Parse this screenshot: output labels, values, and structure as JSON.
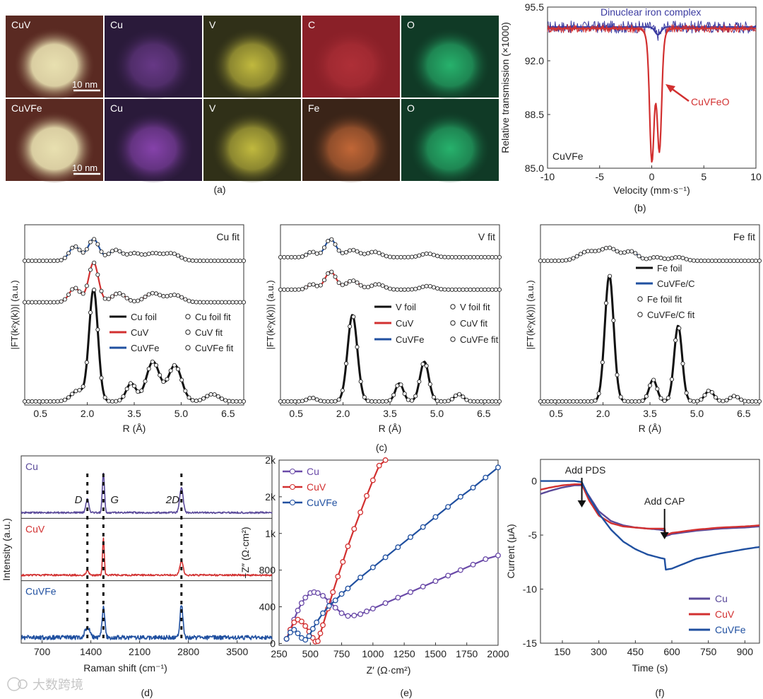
{
  "captions": {
    "a": "(a)",
    "b": "(b)",
    "c": "(c)",
    "d": "(d)",
    "e": "(e)",
    "f": "(f)"
  },
  "watermark": "大数跨境",
  "panel_a": {
    "rows": [
      {
        "tiles": [
          {
            "label": "CuV",
            "color": "#e8e0b0",
            "bg": "#5a2a22",
            "kind": "haadf"
          },
          {
            "label": "Cu",
            "color": "#6a3a8a",
            "bg": "#2a1a3a",
            "kind": "map"
          },
          {
            "label": "V",
            "color": "#c8c040",
            "bg": "#303018",
            "kind": "map"
          },
          {
            "label": "C",
            "color": "#b03038",
            "bg": "#8a2028",
            "kind": "map"
          },
          {
            "label": "O",
            "color": "#28b870",
            "bg": "#103a26",
            "kind": "map"
          }
        ],
        "scale_bar": "10 nm"
      },
      {
        "tiles": [
          {
            "label": "CuVFe",
            "color": "#e8e0b0",
            "bg": "#5a2a22",
            "kind": "haadf"
          },
          {
            "label": "Cu",
            "color": "#8a44b0",
            "bg": "#2a1a3a",
            "kind": "map"
          },
          {
            "label": "V",
            "color": "#c8c040",
            "bg": "#303018",
            "kind": "map"
          },
          {
            "label": "Fe",
            "color": "#c86a38",
            "bg": "#3a2418",
            "kind": "map"
          },
          {
            "label": "O",
            "color": "#28b870",
            "bg": "#103a26",
            "kind": "map"
          }
        ],
        "scale_bar": "10 nm"
      }
    ]
  },
  "chart_data": [
    {
      "id": "b",
      "type": "line",
      "xlabel": "Velocity (mm·s⁻¹)",
      "ylabel": "Relative transmission (×1000)",
      "xlim": [
        -10,
        10
      ],
      "ylim": [
        85.0,
        95.5
      ],
      "xticks": [
        -10,
        -5,
        0,
        5,
        10
      ],
      "yticks": [
        85.0,
        88.5,
        92.0,
        95.5
      ],
      "yticklabels": [
        "85.0",
        "88.5",
        "92.0",
        "95.5"
      ],
      "inner_label": "CuVFe",
      "annotations": [
        {
          "text": "Dinuclear iron complex",
          "color": "#3a3aa0"
        },
        {
          "text": "CuVFeO",
          "color": "#d23030"
        }
      ],
      "series": [
        {
          "name": "Dinuclear iron complex",
          "color": "#3a3aa0",
          "baseline": 94.2,
          "dips": [
            [
              0.6,
              0.5,
              0.4
            ]
          ]
        },
        {
          "name": "CuVFeO",
          "color": "#d23030",
          "baseline": 94.1,
          "dips": [
            [
              0.0,
              6.5,
              0.28
            ],
            [
              0.75,
              6.0,
              0.28
            ],
            [
              0.35,
              2.8,
              0.7
            ]
          ]
        }
      ]
    },
    {
      "id": "c1",
      "type": "line",
      "title": "Cu fit",
      "xlabel": "R (Å)",
      "ylabel": "|FT(k²χ(k))| (a.u.)",
      "xlim": [
        0,
        7
      ],
      "xticks": [
        0.5,
        2.0,
        3.5,
        5.0,
        6.5
      ],
      "xticklabels": [
        "0.5",
        "2.0",
        "3.5",
        "5.0",
        "6.5"
      ],
      "legend": [
        "Cu foil",
        "CuV",
        "CuVFe"
      ],
      "legend_fit": [
        "Cu foil fit",
        "CuV fit",
        "CuVFe fit"
      ],
      "series": [
        {
          "name": "CuVFe",
          "color": "#2050a0",
          "offset": 0.8,
          "peaks": [
            [
              1.6,
              0.08,
              0.25
            ],
            [
              2.2,
              0.12,
              0.25
            ],
            [
              2.9,
              0.06,
              0.3
            ],
            [
              3.5,
              0.04,
              0.3
            ],
            [
              4.1,
              0.04,
              0.35
            ],
            [
              4.7,
              0.04,
              0.35
            ]
          ]
        },
        {
          "name": "CuV",
          "color": "#d23030",
          "offset": 0.57,
          "peaks": [
            [
              1.6,
              0.08,
              0.25
            ],
            [
              2.2,
              0.22,
              0.22
            ],
            [
              3.0,
              0.05,
              0.3
            ],
            [
              4.1,
              0.05,
              0.35
            ],
            [
              4.8,
              0.04,
              0.35
            ]
          ]
        },
        {
          "name": "Cu foil",
          "color": "#111111",
          "offset": 0.02,
          "peaks": [
            [
              1.7,
              0.06,
              0.3
            ],
            [
              2.2,
              0.62,
              0.2
            ],
            [
              3.4,
              0.1,
              0.22
            ],
            [
              4.1,
              0.22,
              0.3
            ],
            [
              4.8,
              0.2,
              0.3
            ],
            [
              6.0,
              0.04,
              0.3
            ]
          ]
        }
      ]
    },
    {
      "id": "c2",
      "type": "line",
      "title": "V fit",
      "xlabel": "R (Å)",
      "ylabel": "|FT(k²χ(k))| (a.u.)",
      "xlim": [
        0,
        7
      ],
      "xticks": [
        0.5,
        2.0,
        3.5,
        5.0,
        6.5
      ],
      "xticklabels": [
        "0.5",
        "2.0",
        "3.5",
        "5.0",
        "6.5"
      ],
      "legend": [
        "V foil",
        "CuV",
        "CuVFe"
      ],
      "legend_fit": [
        "V foil fit",
        "CuV fit",
        "CuVFe fit"
      ],
      "series": [
        {
          "name": "CuVFe",
          "color": "#2050a0",
          "offset": 0.82,
          "peaks": [
            [
              1.0,
              0.03,
              0.2
            ],
            [
              1.6,
              0.1,
              0.25
            ],
            [
              2.3,
              0.04,
              0.3
            ],
            [
              3.0,
              0.03,
              0.3
            ],
            [
              4.7,
              0.02,
              0.3
            ]
          ]
        },
        {
          "name": "CuV",
          "color": "#d23030",
          "offset": 0.64,
          "peaks": [
            [
              1.0,
              0.03,
              0.2
            ],
            [
              1.6,
              0.1,
              0.25
            ],
            [
              2.3,
              0.05,
              0.3
            ],
            [
              3.1,
              0.03,
              0.3
            ],
            [
              4.7,
              0.02,
              0.3
            ]
          ]
        },
        {
          "name": "V foil",
          "color": "#111111",
          "offset": 0.02,
          "peaks": [
            [
              1.0,
              0.02,
              0.2
            ],
            [
              2.3,
              0.48,
              0.22
            ],
            [
              3.8,
              0.1,
              0.18
            ],
            [
              4.6,
              0.22,
              0.2
            ],
            [
              5.7,
              0.04,
              0.2
            ]
          ]
        }
      ]
    },
    {
      "id": "c3",
      "type": "line",
      "title": "Fe fit",
      "xlabel": "R (Å)",
      "ylabel": "|FT(k²χ(k))| (a.u.)",
      "xlim": [
        0,
        7
      ],
      "xticks": [
        0.5,
        2.0,
        3.5,
        5.0,
        6.5
      ],
      "xticklabels": [
        "0.5",
        "2.0",
        "3.5",
        "5.0",
        "6.5"
      ],
      "legend": [
        "Fe foil",
        "CuVFe/C"
      ],
      "legend_fit": [
        "Fe foil fit",
        "CuVFe/C fit"
      ],
      "series": [
        {
          "name": "CuVFe/C",
          "color": "#2050a0",
          "offset": 0.8,
          "peaks": [
            [
              1.5,
              0.05,
              0.4
            ],
            [
              2.2,
              0.07,
              0.4
            ],
            [
              2.9,
              0.05,
              0.3
            ],
            [
              3.7,
              0.02,
              0.3
            ],
            [
              4.4,
              0.02,
              0.3
            ]
          ]
        },
        {
          "name": "Fe foil",
          "color": "#111111",
          "offset": 0.02,
          "peaks": [
            [
              2.2,
              0.7,
              0.2
            ],
            [
              3.6,
              0.12,
              0.18
            ],
            [
              4.4,
              0.42,
              0.18
            ],
            [
              5.4,
              0.06,
              0.2
            ],
            [
              6.2,
              0.03,
              0.2
            ]
          ]
        }
      ]
    },
    {
      "id": "d",
      "type": "line",
      "xlabel": "Raman shift (cm⁻¹)",
      "ylabel": "Intensity (a.u.)",
      "xlim": [
        400,
        4000
      ],
      "xticks": [
        700,
        1400,
        2100,
        2800,
        3500
      ],
      "peak_labels": [
        "D",
        "G",
        "2D"
      ],
      "peak_positions": [
        1350,
        1580,
        2700
      ],
      "series": [
        {
          "name": "Cu",
          "color": "#5a4a9a",
          "peaks": [
            [
              1350,
              0.3,
              30
            ],
            [
              1580,
              0.85,
              22
            ],
            [
              2700,
              0.55,
              35
            ]
          ]
        },
        {
          "name": "CuV",
          "color": "#d23030",
          "peaks": [
            [
              1350,
              0.1,
              30
            ],
            [
              1580,
              0.8,
              18
            ],
            [
              2700,
              0.3,
              35
            ]
          ]
        },
        {
          "name": "CuVFe",
          "color": "#2050a0",
          "peaks": [
            [
              1350,
              0.22,
              50
            ],
            [
              1580,
              0.65,
              28
            ],
            [
              2700,
              0.72,
              30
            ]
          ]
        }
      ]
    },
    {
      "id": "e",
      "type": "scatter",
      "xlabel": "Z′ (Ω·cm²)",
      "ylabel": "−Z″ (Ω·cm²)",
      "xlim": [
        250,
        2000
      ],
      "ylim": [
        -20,
        2000
      ],
      "xticks": [
        250,
        500,
        750,
        1000,
        1250,
        1500,
        1750,
        2000
      ],
      "yticks": [
        0,
        400,
        800,
        1200,
        1600,
        2000
      ],
      "yticklabels": [
        "0",
        "400",
        "800",
        "1k",
        "2k",
        "2k"
      ],
      "legend": [
        "Cu",
        "CuV",
        "CuVFe"
      ],
      "series": [
        {
          "name": "Cu",
          "color": "#6a4aa8",
          "x": [
            310,
            340,
            370,
            400,
            430,
            460,
            500,
            530,
            560,
            600,
            650,
            700,
            750,
            800,
            850,
            900,
            950,
            1000,
            1100,
            1200,
            1300,
            1400,
            1500,
            1600,
            1700,
            1800,
            1900,
            2000
          ],
          "y": [
            50,
            150,
            260,
            360,
            440,
            500,
            550,
            560,
            550,
            520,
            460,
            390,
            330,
            300,
            305,
            320,
            350,
            380,
            440,
            500,
            560,
            620,
            680,
            740,
            800,
            860,
            920,
            960
          ]
        },
        {
          "name": "CuV",
          "color": "#d23030",
          "x": [
            310,
            340,
            370,
            400,
            430,
            460,
            490,
            520,
            540,
            560,
            580,
            600,
            640,
            680,
            720,
            760,
            800,
            850,
            900,
            950,
            1000,
            1050,
            1100
          ],
          "y": [
            50,
            150,
            230,
            260,
            240,
            190,
            130,
            60,
            20,
            25,
            110,
            200,
            380,
            560,
            730,
            890,
            1060,
            1250,
            1430,
            1610,
            1780,
            1940,
            2000
          ]
        },
        {
          "name": "CuVFe",
          "color": "#2050a0",
          "x": [
            310,
            340,
            370,
            400,
            430,
            460,
            490,
            520,
            550,
            600,
            650,
            700,
            750,
            800,
            900,
            1000,
            1100,
            1200,
            1300,
            1400,
            1500,
            1600,
            1700,
            1800,
            1900,
            2000
          ],
          "y": [
            50,
            120,
            150,
            110,
            60,
            40,
            80,
            160,
            230,
            330,
            410,
            470,
            540,
            600,
            720,
            830,
            940,
            1050,
            1160,
            1270,
            1380,
            1490,
            1600,
            1700,
            1810,
            1920
          ]
        }
      ]
    },
    {
      "id": "f",
      "type": "line",
      "xlabel": "Time (s)",
      "ylabel": "Current (μA)",
      "xlim": [
        60,
        960
      ],
      "ylim": [
        -15,
        2
      ],
      "xticks": [
        150,
        300,
        450,
        600,
        750,
        900
      ],
      "yticks": [
        -15,
        -10,
        -5,
        0
      ],
      "annotations": [
        {
          "text": "Add PDS",
          "x": 230
        },
        {
          "text": "Add CAP",
          "x": 570
        }
      ],
      "legend": [
        "Cu",
        "CuV",
        "CuVFe"
      ],
      "series": [
        {
          "name": "Cu",
          "color": "#5a4a9a",
          "x": [
            60,
            100,
            150,
            200,
            230,
            260,
            300,
            350,
            400,
            450,
            500,
            550,
            570,
            575,
            600,
            700,
            800,
            900,
            960
          ],
          "y": [
            -1.2,
            -0.9,
            -0.6,
            -0.4,
            -0.4,
            -1.4,
            -2.8,
            -3.7,
            -4.1,
            -4.3,
            -4.4,
            -4.5,
            -4.6,
            -5.1,
            -4.9,
            -4.6,
            -4.4,
            -4.3,
            -4.2
          ]
        },
        {
          "name": "CuV",
          "color": "#d23030",
          "x": [
            60,
            100,
            150,
            200,
            230,
            260,
            300,
            350,
            400,
            450,
            500,
            550,
            570,
            575,
            600,
            700,
            800,
            900,
            960
          ],
          "y": [
            -0.8,
            -0.6,
            -0.4,
            -0.3,
            -0.3,
            -1.8,
            -3.2,
            -3.9,
            -4.2,
            -4.3,
            -4.4,
            -4.4,
            -4.4,
            -5.0,
            -4.8,
            -4.5,
            -4.3,
            -4.2,
            -4.1
          ]
        },
        {
          "name": "CuVFe",
          "color": "#2050a0",
          "x": [
            60,
            100,
            150,
            200,
            230,
            260,
            300,
            350,
            400,
            450,
            500,
            550,
            570,
            575,
            600,
            700,
            800,
            900,
            960
          ],
          "y": [
            0,
            0,
            0,
            0,
            -0.1,
            -1.5,
            -3.0,
            -4.5,
            -5.6,
            -6.3,
            -6.8,
            -7.1,
            -7.2,
            -8.2,
            -8.1,
            -7.2,
            -6.7,
            -6.3,
            -6.1
          ]
        }
      ]
    }
  ]
}
